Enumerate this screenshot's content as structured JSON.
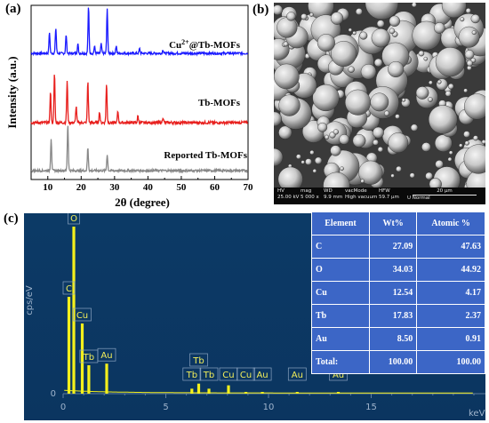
{
  "panel_labels": {
    "a": "(a)",
    "b": "(b)",
    "c": "(c)"
  },
  "chart_data": [
    {
      "type": "line",
      "xlabel": "2θ (degree)",
      "ylabel": "Intensity (a.u.)",
      "xlim": [
        5,
        70
      ],
      "xticks": [
        "10",
        "20",
        "30",
        "40",
        "50",
        "60",
        "70"
      ],
      "series": [
        {
          "name": "Cu2+@Tb-MOFs",
          "color": "#1a1aff",
          "peaks": [
            [
              10.5,
              0.45
            ],
            [
              12.4,
              0.55
            ],
            [
              15.5,
              0.4
            ],
            [
              19.0,
              0.2
            ],
            [
              22.2,
              1.0
            ],
            [
              24.0,
              0.15
            ],
            [
              26.0,
              0.2
            ],
            [
              27.8,
              0.95
            ],
            [
              30.5,
              0.15
            ],
            [
              37.5,
              0.1
            ],
            [
              44.5,
              0.08
            ]
          ]
        },
        {
          "name": "Tb-MOFs",
          "color": "#e8201e",
          "peaks": [
            [
              10.8,
              0.55
            ],
            [
              12.0,
              0.9
            ],
            [
              15.8,
              0.75
            ],
            [
              18.5,
              0.3
            ],
            [
              22.0,
              0.75
            ],
            [
              25.5,
              0.2
            ],
            [
              27.6,
              0.7
            ],
            [
              31.0,
              0.2
            ],
            [
              37.0,
              0.12
            ],
            [
              44.5,
              0.1
            ]
          ]
        },
        {
          "name": "Reported Tb-MOFs",
          "color": "#888888",
          "peaks": [
            [
              11.0,
              0.7
            ],
            [
              16.0,
              1.0
            ],
            [
              22.0,
              0.5
            ],
            [
              27.8,
              0.35
            ]
          ]
        }
      ]
    },
    {
      "type": "bar",
      "title": "",
      "xlabel": "keV",
      "ylabel": "cps/eV",
      "xlim": [
        0,
        20
      ],
      "xticks": [
        "0",
        "5",
        "10",
        "15"
      ],
      "ytick": "0",
      "peaks": [
        {
          "label": "C",
          "energy": 0.28,
          "height": 0.58
        },
        {
          "label": "O",
          "energy": 0.52,
          "height": 1.0
        },
        {
          "label": "Cu",
          "energy": 0.93,
          "height": 0.42
        },
        {
          "label": "Tb",
          "energy": 1.25,
          "height": 0.17
        },
        {
          "label": "Au",
          "energy": 2.12,
          "height": 0.18
        },
        {
          "label": "Tb",
          "energy": 6.27,
          "height": 0.03
        },
        {
          "label": "Tb",
          "energy": 6.6,
          "height": 0.06
        },
        {
          "label": "Tb",
          "energy": 7.1,
          "height": 0.03
        },
        {
          "label": "Cu",
          "energy": 8.05,
          "height": 0.05
        },
        {
          "label": "Cu",
          "energy": 8.9,
          "height": 0.01
        },
        {
          "label": "Au",
          "energy": 9.7,
          "height": 0.01
        },
        {
          "label": "Au",
          "energy": 11.4,
          "height": 0.01
        },
        {
          "label": "Au",
          "energy": 13.4,
          "height": 0.01
        }
      ]
    }
  ],
  "sem_info": {
    "labels": [
      "HV",
      "mag",
      "WD",
      "vacMode",
      "HFW",
      "20 µm"
    ],
    "values": [
      "25.00 kV",
      "5 000 x",
      "9.9 mm",
      "High vacuum",
      "59.7 µm",
      "U Normal"
    ]
  },
  "eds_table": {
    "headers": [
      "Element",
      "Wt%",
      "Atomic %"
    ],
    "rows": [
      [
        "C",
        "27.09",
        "47.63"
      ],
      [
        "O",
        "34.03",
        "44.92"
      ],
      [
        "Cu",
        "12.54",
        "4.17"
      ],
      [
        "Tb",
        "17.83",
        "2.37"
      ],
      [
        "Au",
        "8.50",
        "0.91"
      ],
      [
        "Total:",
        "100.00",
        "100.00"
      ]
    ]
  }
}
